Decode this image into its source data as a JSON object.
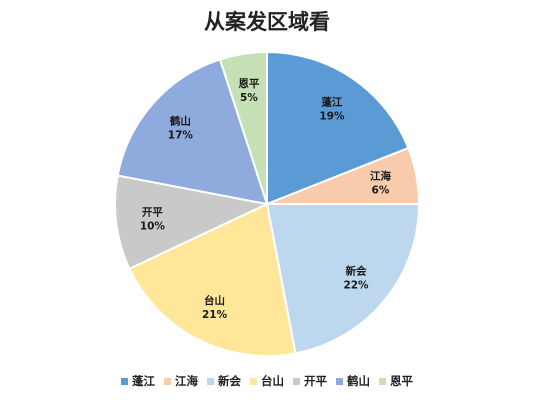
{
  "chart_data": {
    "type": "pie",
    "title": "从案发区域看",
    "categories": [
      "蓬江",
      "江海",
      "新会",
      "台山",
      "开平",
      "鹤山",
      "恩平"
    ],
    "values": [
      19,
      6,
      22,
      21,
      10,
      17,
      5
    ],
    "value_labels": [
      "19%",
      "6%",
      "22%",
      "21%",
      "10%",
      "17%",
      "5%"
    ],
    "colors": [
      "#5b9bd5",
      "#f8cbad",
      "#bdd7ee",
      "#ffe699",
      "#c9c9c9",
      "#8faadc",
      "#c5e0b4"
    ],
    "start_angle": "12 o'clock",
    "direction": "clockwise",
    "legend": "bottom"
  }
}
